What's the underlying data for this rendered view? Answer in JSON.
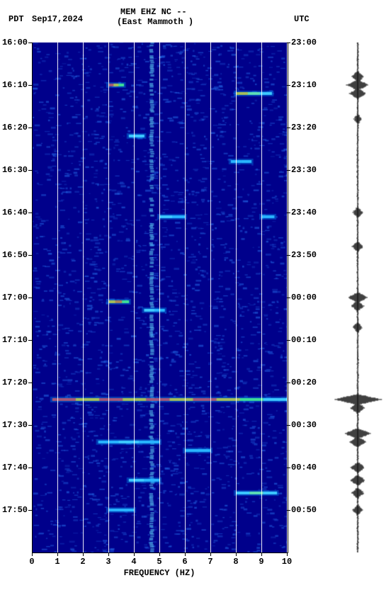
{
  "header": {
    "tz_left": "PDT",
    "date": "Sep17,2024",
    "station_line1": "MEM EHZ NC --",
    "station_line2": "(East Mammoth )",
    "tz_right": "UTC"
  },
  "spectrogram": {
    "type": "spectrogram",
    "xlabel": "FREQUENCY (HZ)",
    "xlim": [
      0,
      10
    ],
    "xtick_step": 1,
    "xticks": [
      "0",
      "1",
      "2",
      "3",
      "4",
      "5",
      "6",
      "7",
      "8",
      "9",
      "10"
    ],
    "left_time_ticks": [
      "16:00",
      "16:10",
      "16:20",
      "16:30",
      "16:40",
      "16:50",
      "17:00",
      "17:10",
      "17:20",
      "17:30",
      "17:40",
      "17:50"
    ],
    "right_time_ticks": [
      "23:00",
      "23:10",
      "23:20",
      "23:30",
      "23:40",
      "23:50",
      "00:00",
      "00:10",
      "00:20",
      "00:30",
      "00:40",
      "00:50"
    ],
    "time_rows_minutes": 120,
    "background_cmap_low": "#00008b",
    "background_cmap_mid": "#0050d0",
    "background_cmap_high": "#00a0ff",
    "grid_color": "#ffffff",
    "persistent_vertical_band_center_hz": 4.7,
    "persistent_vertical_band_width_hz": 0.15,
    "persistent_band_color": "#66e0ff",
    "events": [
      {
        "minute_from_start": 10,
        "freq_start": 3.0,
        "freq_end": 3.6,
        "colors": [
          "#ff3030",
          "#ffd000",
          "#60ff60"
        ]
      },
      {
        "minute_from_start": 12,
        "freq_start": 8.0,
        "freq_end": 9.4,
        "colors": [
          "#ffd000",
          "#90ff90",
          "#60e0ff"
        ]
      },
      {
        "minute_from_start": 22,
        "freq_start": 3.8,
        "freq_end": 4.4,
        "colors": [
          "#60e0ff",
          "#60e0ff"
        ]
      },
      {
        "minute_from_start": 28,
        "freq_start": 7.8,
        "freq_end": 8.6,
        "colors": [
          "#40c0ff",
          "#40c0ff"
        ]
      },
      {
        "minute_from_start": 41,
        "freq_start": 5.0,
        "freq_end": 6.0,
        "colors": [
          "#60e0ff",
          "#40c0ff"
        ]
      },
      {
        "minute_from_start": 41,
        "freq_start": 9.0,
        "freq_end": 9.5,
        "colors": [
          "#40c0ff"
        ]
      },
      {
        "minute_from_start": 61,
        "freq_start": 3.0,
        "freq_end": 3.8,
        "colors": [
          "#ffd000",
          "#ff7000",
          "#60ff60"
        ]
      },
      {
        "minute_from_start": 63,
        "freq_start": 4.4,
        "freq_end": 5.2,
        "colors": [
          "#60e0ff",
          "#40c0ff"
        ]
      },
      {
        "minute_from_start": 84,
        "freq_start": 0.8,
        "freq_end": 10.0,
        "colors": [
          "#ff3030",
          "#ffd000",
          "#ff3030",
          "#ffd000",
          "#ff3030",
          "#ffd000",
          "#ff3030",
          "#ffd000",
          "#60ff60",
          "#60e0ff"
        ]
      },
      {
        "minute_from_start": 94,
        "freq_start": 2.6,
        "freq_end": 5.0,
        "colors": [
          "#40c0ff",
          "#60e0ff",
          "#40c0ff"
        ]
      },
      {
        "minute_from_start": 96,
        "freq_start": 6.0,
        "freq_end": 7.0,
        "colors": [
          "#40c0ff"
        ]
      },
      {
        "minute_from_start": 103,
        "freq_start": 3.8,
        "freq_end": 5.0,
        "colors": [
          "#60e0ff",
          "#40c0ff"
        ]
      },
      {
        "minute_from_start": 106,
        "freq_start": 8.0,
        "freq_end": 9.6,
        "colors": [
          "#60e0ff",
          "#90ff90",
          "#60e0ff"
        ]
      },
      {
        "minute_from_start": 110,
        "freq_start": 3.0,
        "freq_end": 4.0,
        "colors": [
          "#40c0ff"
        ]
      }
    ],
    "noise_speckles": 2600,
    "noise_color": "#2060e0"
  },
  "waveform": {
    "baseline_color": "#000000",
    "spikes": [
      {
        "minute_from_start": 8,
        "amp": 0.25
      },
      {
        "minute_from_start": 10,
        "amp": 0.45
      },
      {
        "minute_from_start": 12,
        "amp": 0.35
      },
      {
        "minute_from_start": 18,
        "amp": 0.15
      },
      {
        "minute_from_start": 40,
        "amp": 0.2
      },
      {
        "minute_from_start": 48,
        "amp": 0.22
      },
      {
        "minute_from_start": 60,
        "amp": 0.4
      },
      {
        "minute_from_start": 62,
        "amp": 0.25
      },
      {
        "minute_from_start": 67,
        "amp": 0.18
      },
      {
        "minute_from_start": 84,
        "amp": 1.0
      },
      {
        "minute_from_start": 86,
        "amp": 0.3
      },
      {
        "minute_from_start": 92,
        "amp": 0.55
      },
      {
        "minute_from_start": 94,
        "amp": 0.35
      },
      {
        "minute_from_start": 100,
        "amp": 0.28
      },
      {
        "minute_from_start": 103,
        "amp": 0.3
      },
      {
        "minute_from_start": 106,
        "amp": 0.25
      },
      {
        "minute_from_start": 110,
        "amp": 0.2
      }
    ],
    "continuous_jitter_amp": 0.05
  }
}
